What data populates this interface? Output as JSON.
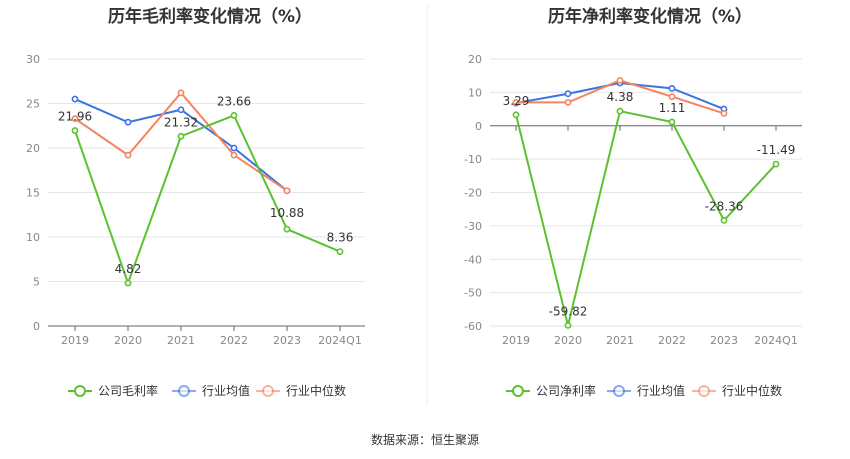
{
  "source_note": "数据来源：恒生聚源",
  "chart_data": [
    {
      "type": "line",
      "title": "历年毛利率变化情况（%）",
      "x": [
        "2019",
        "2020",
        "2021",
        "2022",
        "2023",
        "2024Q1"
      ],
      "ylim": [
        0,
        30
      ],
      "yticks": [
        "30",
        "25",
        "20",
        "15",
        "10",
        "5",
        "0"
      ],
      "grid": true,
      "legend_position": "bottom",
      "series": [
        {
          "name": "公司毛利率",
          "color": "#5cc130",
          "values": [
            21.96,
            4.82,
            21.32,
            23.66,
            10.88,
            8.36
          ],
          "labels": [
            "21.96",
            "4.82",
            "21.32",
            "23.66",
            "10.88",
            "8.36"
          ]
        },
        {
          "name": "行业均值",
          "color": "#3a73e2",
          "values": [
            25.5,
            22.9,
            24.3,
            20.0,
            15.2,
            null
          ]
        },
        {
          "name": "行业中位数",
          "color": "#f4845f",
          "values": [
            23.3,
            19.2,
            26.2,
            19.2,
            15.2,
            null
          ]
        }
      ]
    },
    {
      "type": "line",
      "title": "历年净利率变化情况（%）",
      "x": [
        "2019",
        "2020",
        "2021",
        "2022",
        "2023",
        "2024Q1"
      ],
      "ylim": [
        -60,
        20
      ],
      "yticks": [
        "20",
        "10",
        "0",
        "-10",
        "-20",
        "-30",
        "-40",
        "-50",
        "-60"
      ],
      "grid": true,
      "legend_position": "bottom",
      "series": [
        {
          "name": "公司净利率",
          "color": "#5cc130",
          "values": [
            3.29,
            -59.82,
            4.38,
            1.11,
            -28.36,
            -11.49
          ],
          "labels": [
            "3.29",
            "-59.82",
            "4.38",
            "1.11",
            "-28.36",
            "-11.49"
          ]
        },
        {
          "name": "行业均值",
          "color": "#3a73e2",
          "values": [
            6.8,
            9.6,
            12.8,
            11.2,
            5.0,
            null
          ]
        },
        {
          "name": "行业中位数",
          "color": "#f4845f",
          "values": [
            7.0,
            7.0,
            13.6,
            8.7,
            3.7,
            null
          ]
        }
      ]
    }
  ]
}
